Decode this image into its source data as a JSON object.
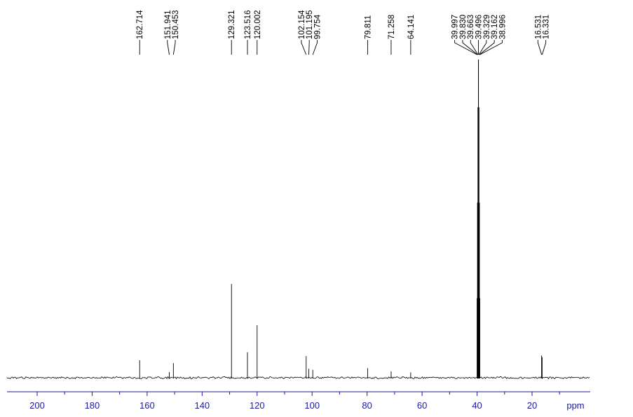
{
  "chart_data": {
    "type": "line",
    "title": "",
    "xlabel": "ppm",
    "ylabel": "",
    "x_reversed": true,
    "xlim": [
      210,
      7
    ],
    "x_ticks": [
      200,
      180,
      160,
      140,
      120,
      100,
      80,
      60,
      40,
      20
    ],
    "x_tick_labels": [
      "200",
      "180",
      "160",
      "140",
      "120",
      "100",
      "80",
      "60",
      "40",
      "20"
    ],
    "grid": false,
    "line_color": "#000000",
    "axis_color": "#1a1aa6",
    "peaks": [
      {
        "ppm": 162.714,
        "label": "162.714",
        "intensity": 0.055
      },
      {
        "ppm": 151.941,
        "label": "151.941",
        "intensity": 0.018
      },
      {
        "ppm": 150.453,
        "label": "150.453",
        "intensity": 0.046
      },
      {
        "ppm": 129.321,
        "label": "129.321",
        "intensity": 0.295
      },
      {
        "ppm": 123.516,
        "label": "123.516",
        "intensity": 0.08
      },
      {
        "ppm": 120.002,
        "label": "120.002",
        "intensity": 0.165
      },
      {
        "ppm": 102.154,
        "label": "102.154",
        "intensity": 0.068
      },
      {
        "ppm": 101.195,
        "label": "101.195",
        "intensity": 0.028
      },
      {
        "ppm": 99.754,
        "label": "99.754",
        "intensity": 0.025
      },
      {
        "ppm": 79.811,
        "label": "79.811",
        "intensity": 0.03
      },
      {
        "ppm": 71.258,
        "label": "71.258",
        "intensity": 0.02
      },
      {
        "ppm": 64.141,
        "label": "64.141",
        "intensity": 0.017
      },
      {
        "ppm": 39.997,
        "label": "39.997",
        "intensity": 0.25
      },
      {
        "ppm": 39.83,
        "label": "39.830",
        "intensity": 0.55
      },
      {
        "ppm": 39.663,
        "label": "39.663",
        "intensity": 0.85
      },
      {
        "ppm": 39.496,
        "label": "39.496",
        "intensity": 1.0
      },
      {
        "ppm": 39.329,
        "label": "39.329",
        "intensity": 0.85
      },
      {
        "ppm": 39.162,
        "label": "39.162",
        "intensity": 0.55
      },
      {
        "ppm": 38.996,
        "label": "38.996",
        "intensity": 0.25
      },
      {
        "ppm": 16.531,
        "label": "16.531",
        "intensity": 0.07
      },
      {
        "ppm": 16.331,
        "label": "16.331",
        "intensity": 0.065
      }
    ]
  }
}
